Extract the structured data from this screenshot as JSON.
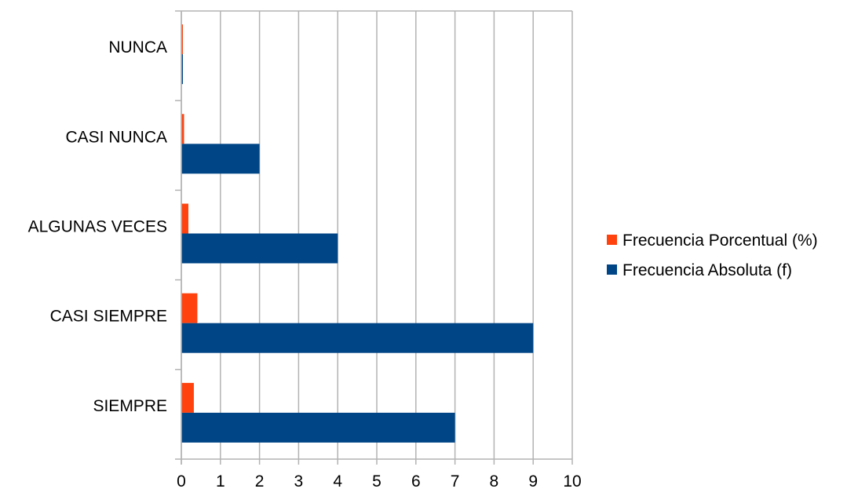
{
  "chart_data": {
    "type": "bar",
    "orientation": "horizontal",
    "categories": [
      "NUNCA",
      "CASI NUNCA",
      "ALGUNAS VECES",
      "CASI SIEMPRE",
      "SIEMPRE"
    ],
    "series": [
      {
        "name": "Frecuencia Porcentual (%)",
        "color": "#ff420e",
        "values": [
          0.0,
          0.07,
          0.18,
          0.41,
          0.32
        ]
      },
      {
        "name": "Frecuencia Absoluta (f)",
        "color": "#004586",
        "values": [
          0,
          2,
          4,
          9,
          7
        ]
      }
    ],
    "xlim": [
      0,
      10
    ],
    "xticks": [
      "0",
      "1",
      "2",
      "3",
      "4",
      "5",
      "6",
      "7",
      "8",
      "9",
      "10"
    ],
    "grid": true,
    "legend_position": "right",
    "title": "",
    "xlabel": "",
    "ylabel": ""
  }
}
